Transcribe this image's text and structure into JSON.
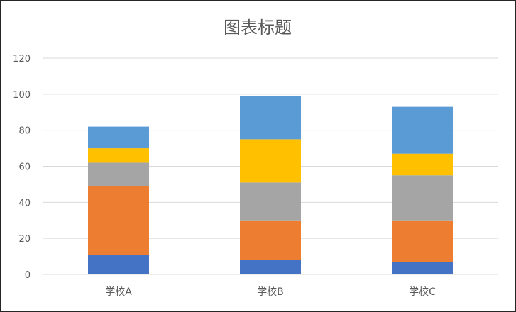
{
  "chart_data": {
    "type": "bar",
    "stacked": true,
    "title": "图表标题",
    "xlabel": "",
    "ylabel": "",
    "categories": [
      "学校A",
      "学校B",
      "学校C"
    ],
    "ylim": [
      0,
      120
    ],
    "yticks": [
      0,
      20,
      40,
      60,
      80,
      100,
      120
    ],
    "grid": true,
    "legend": "none",
    "series": [
      {
        "color": "#4472C4",
        "values": [
          11,
          8,
          7
        ]
      },
      {
        "color": "#ED7D31",
        "values": [
          38,
          22,
          23
        ]
      },
      {
        "color": "#A5A5A5",
        "values": [
          13,
          21,
          25
        ]
      },
      {
        "color": "#FFC000",
        "values": [
          8,
          24,
          12
        ]
      },
      {
        "color": "#5B9BD5",
        "values": [
          12,
          24,
          26
        ]
      }
    ]
  }
}
